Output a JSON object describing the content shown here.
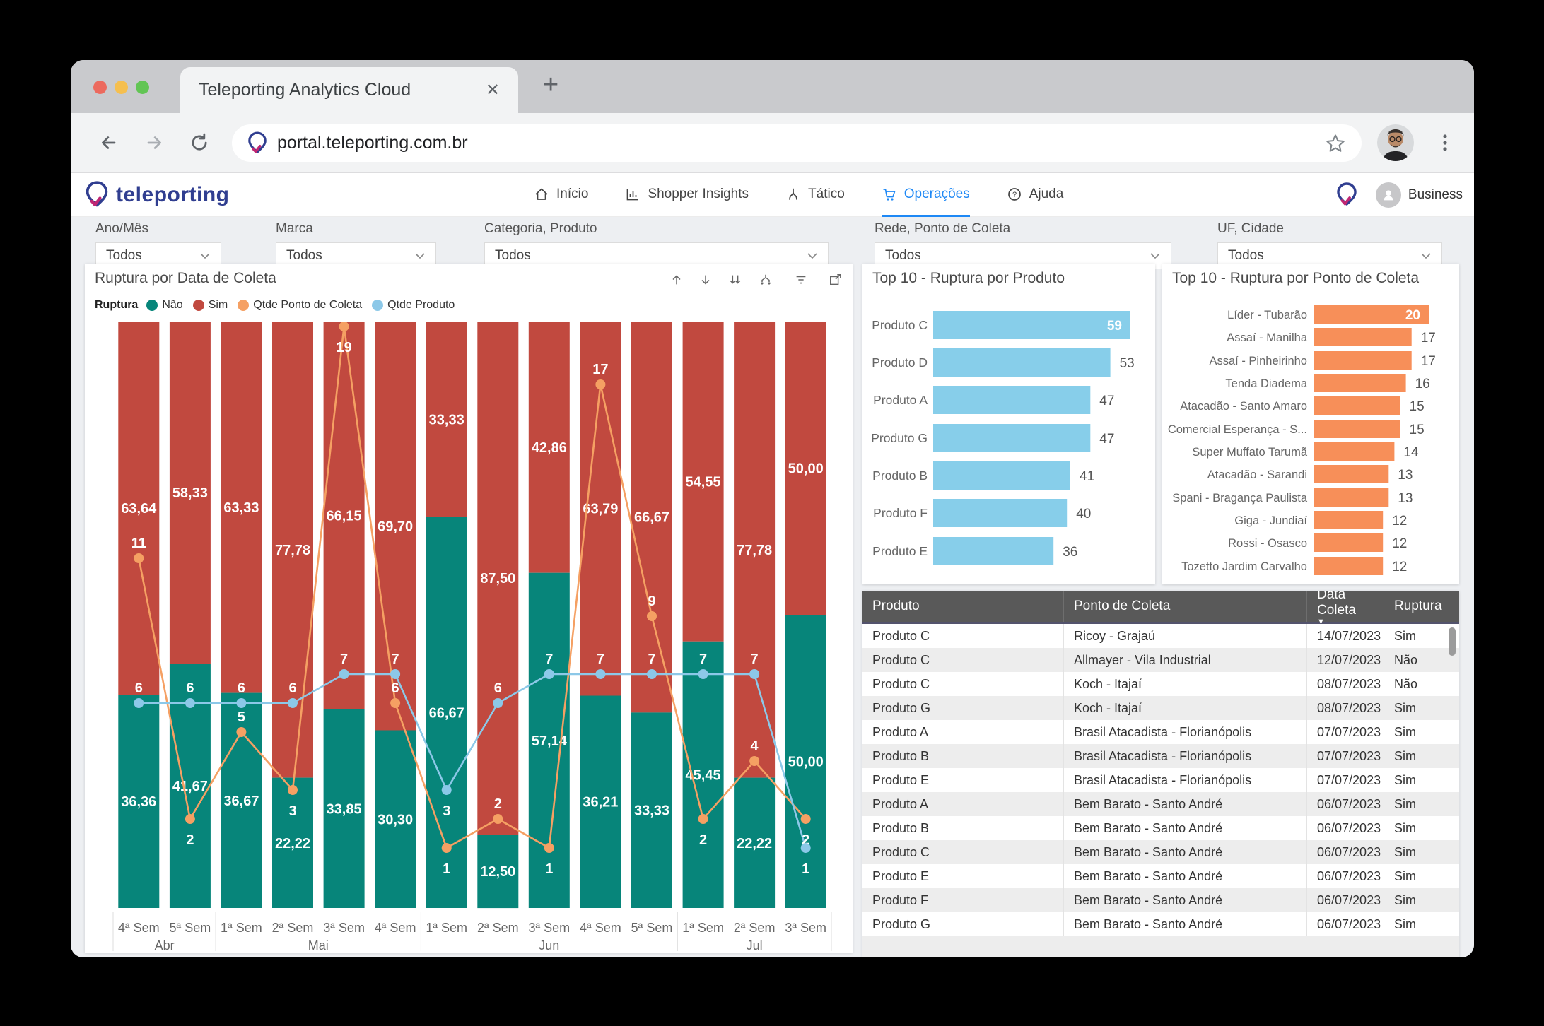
{
  "browser": {
    "tab_title": "Teleporting Analytics Cloud",
    "close_tab_glyph": "✕",
    "new_tab_glyph": "+",
    "url": "portal.teleporting.com.br"
  },
  "nav": {
    "logo_text": "teleporting",
    "items": [
      {
        "label": "Início",
        "icon": "home-icon",
        "selected": false
      },
      {
        "label": "Shopper Insights",
        "icon": "chart-icon",
        "selected": false
      },
      {
        "label": "Tático",
        "icon": "branch-icon",
        "selected": false
      },
      {
        "label": "Operações",
        "icon": "cart-icon",
        "selected": true
      },
      {
        "label": "Ajuda",
        "icon": "help-icon",
        "selected": false
      }
    ],
    "account_label": "Business",
    "selected_color": "#1e88f5"
  },
  "filters": [
    {
      "label": "Ano/Mês",
      "value": "Todos"
    },
    {
      "label": "Marca",
      "value": "Todos"
    },
    {
      "label": "Categoria, Produto",
      "value": "Todos"
    },
    {
      "label": "Rede, Ponto de Coleta",
      "value": "Todos"
    },
    {
      "label": "UF, Cidade",
      "value": "Todos"
    }
  ],
  "visual_header_icons": [
    "drill-up",
    "drill-down",
    "drill-next-level",
    "expand-all-hierarchy",
    "filters",
    "focus-mode"
  ],
  "chart_data": [
    {
      "type": "bar",
      "subtype": "100%-stacked-columns-with-lines",
      "title": "Ruptura por Data de Coleta",
      "legend_title": "Ruptura",
      "legend_position": "top-left",
      "grid": false,
      "y_axis": {
        "primary": "percent 0-100 (hidden)",
        "secondary": "count 0-20 (hidden)"
      },
      "categories": [
        "4ª Sem",
        "5ª Sem",
        "1ª Sem",
        "2ª Sem",
        "3ª Sem",
        "4ª Sem",
        "1ª Sem",
        "2ª Sem",
        "3ª Sem",
        "4ª Sem",
        "5ª Sem",
        "1ª Sem",
        "2ª Sem",
        "3ª Sem"
      ],
      "month_groups": [
        {
          "label": "Abr",
          "count": 2
        },
        {
          "label": "Mai",
          "count": 4
        },
        {
          "label": "Jun",
          "count": 5
        },
        {
          "label": "Jul",
          "count": 3
        }
      ],
      "series": [
        {
          "name": "Não",
          "role": "stacked-bar",
          "color": "#07857a",
          "values": [
            36.36,
            41.67,
            36.67,
            22.22,
            33.85,
            30.3,
            66.67,
            12.5,
            57.14,
            36.21,
            33.33,
            45.45,
            22.22,
            50.0
          ],
          "labels": [
            "36,36",
            "41,67",
            "36,67",
            "22,22",
            "33,85",
            "30,30",
            "66,67",
            "12,50",
            "57,14",
            "36,21",
            "33,33",
            "45,45",
            "22,22",
            "50,00"
          ]
        },
        {
          "name": "Sim",
          "role": "stacked-bar",
          "color": "#c1493f",
          "values": [
            63.64,
            58.33,
            63.33,
            77.78,
            66.15,
            69.7,
            33.33,
            87.5,
            42.86,
            63.79,
            66.67,
            54.55,
            77.78,
            50.0
          ],
          "labels": [
            "63,64",
            "58,33",
            "63,33",
            "77,78",
            "66,15",
            "69,70",
            "33,33",
            "87,50",
            "42,86",
            "63,79",
            "66,67",
            "54,55",
            "77,78",
            "50,00"
          ]
        },
        {
          "name": "Qtde Ponto de Coleta",
          "role": "line",
          "color": "#f5a063",
          "values": [
            11,
            2,
            5,
            3,
            19,
            6,
            1,
            2,
            1,
            17,
            9,
            2,
            4,
            2
          ],
          "label_side": [
            "above",
            "below",
            "above",
            "below",
            "below",
            "above",
            "below",
            "above",
            "below",
            "above",
            "above",
            "below",
            "above",
            "below"
          ]
        },
        {
          "name": "Qtde Produto",
          "role": "line",
          "color": "#8cc8e8",
          "values": [
            6,
            6,
            6,
            6,
            7,
            7,
            3,
            6,
            7,
            7,
            7,
            7,
            7,
            1
          ],
          "label_side": [
            "above",
            "above",
            "above",
            "above",
            "above",
            "above",
            "below",
            "above",
            "above",
            "above",
            "above",
            "above",
            "above",
            "below"
          ]
        }
      ]
    },
    {
      "type": "bar",
      "orientation": "horizontal",
      "title": "Top 10 - Ruptura por Produto",
      "color": "#87ceea",
      "categories": [
        "Produto C",
        "Produto D",
        "Produto A",
        "Produto G",
        "Produto B",
        "Produto F",
        "Produto E"
      ],
      "values": [
        59,
        53,
        47,
        47,
        41,
        40,
        36
      ]
    },
    {
      "type": "bar",
      "orientation": "horizontal",
      "title": "Top 10 - Ruptura por Ponto de Coleta",
      "color": "#f78f59",
      "categories": [
        "Líder - Tubarão",
        "Assaí - Manilha",
        "Assaí - Pinheirinho",
        "Tenda Diadema",
        "Atacadão - Santo Amaro",
        "Comercial Esperança - S...",
        "Super Muffato Tarumã",
        "Atacadão - Sarandi",
        "Spani - Bragança Paulista",
        "Giga - Jundiaí",
        "Rossi - Osasco",
        "Tozetto Jardim Carvalho"
      ],
      "values": [
        20,
        17,
        17,
        16,
        15,
        15,
        14,
        13,
        13,
        12,
        12,
        12
      ]
    }
  ],
  "table": {
    "columns": [
      "Produto",
      "Ponto de Coleta",
      "Data Coleta",
      "Ruptura"
    ],
    "sort": {
      "column": "Data Coleta",
      "direction": "desc"
    },
    "rows": [
      [
        "Produto C",
        "Ricoy - Grajaú",
        "14/07/2023",
        "Sim"
      ],
      [
        "Produto C",
        "Allmayer - Vila Industrial",
        "12/07/2023",
        "Não"
      ],
      [
        "Produto C",
        "Koch - Itajaí",
        "08/07/2023",
        "Não"
      ],
      [
        "Produto G",
        "Koch - Itajaí",
        "08/07/2023",
        "Sim"
      ],
      [
        "Produto A",
        "Brasil Atacadista - Florianópolis",
        "07/07/2023",
        "Sim"
      ],
      [
        "Produto B",
        "Brasil Atacadista - Florianópolis",
        "07/07/2023",
        "Sim"
      ],
      [
        "Produto E",
        "Brasil Atacadista - Florianópolis",
        "07/07/2023",
        "Sim"
      ],
      [
        "Produto A",
        "Bem Barato - Santo André",
        "06/07/2023",
        "Sim"
      ],
      [
        "Produto B",
        "Bem Barato - Santo André",
        "06/07/2023",
        "Sim"
      ],
      [
        "Produto C",
        "Bem Barato - Santo André",
        "06/07/2023",
        "Sim"
      ],
      [
        "Produto E",
        "Bem Barato - Santo André",
        "06/07/2023",
        "Sim"
      ],
      [
        "Produto F",
        "Bem Barato - Santo André",
        "06/07/2023",
        "Sim"
      ],
      [
        "Produto G",
        "Bem Barato - Santo André",
        "06/07/2023",
        "Sim"
      ]
    ]
  }
}
